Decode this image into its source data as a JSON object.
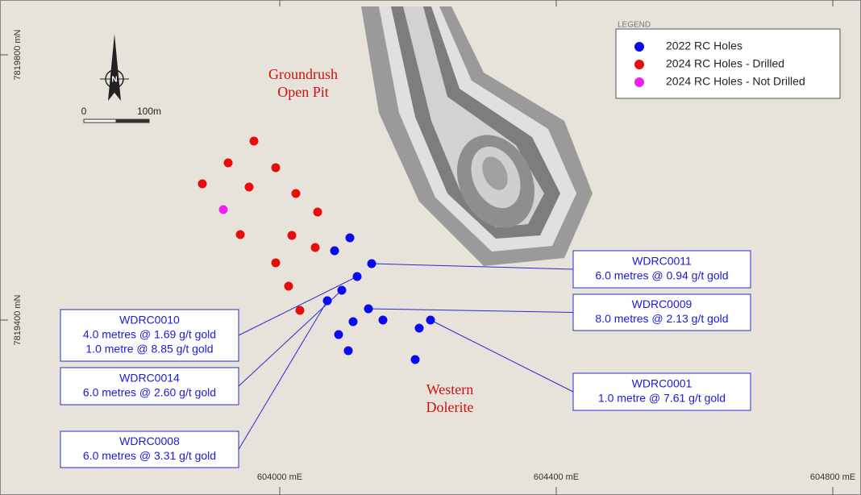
{
  "map": {
    "grid_labels": {
      "north": [
        "7819800 mN",
        "7819400 mN"
      ],
      "east": [
        "604000 mE",
        "604400 mE",
        "604800 mE"
      ]
    },
    "north_arrow": "N",
    "scale_bar": {
      "start": "0",
      "end": "100m"
    },
    "legend": {
      "title": "LEGEND",
      "items": [
        {
          "label": "2022 RC Holes",
          "color": "#0a0af0"
        },
        {
          "label": "2024 RC Holes - Drilled",
          "color": "#e80c0c"
        },
        {
          "label": "2024 RC Holes - Not Drilled",
          "color": "#f020f0"
        }
      ]
    },
    "place_labels": {
      "pit": [
        "Groundrush",
        "Open Pit"
      ],
      "dolerite": [
        "Western",
        "Dolerite"
      ]
    },
    "callouts": [
      {
        "hole": "WDRC0011",
        "lines": [
          "6.0 metres @ 0.94 g/t gold"
        ]
      },
      {
        "hole": "WDRC0009",
        "lines": [
          "8.0 metres @ 2.13 g/t gold"
        ]
      },
      {
        "hole": "WDRC0001",
        "lines": [
          "1.0 metre @ 7.61 g/t gold"
        ]
      },
      {
        "hole": "WDRC0010",
        "lines": [
          "4.0 metres @ 1.69 g/t gold",
          "1.0 metre @ 8.85 g/t gold"
        ]
      },
      {
        "hole": "WDRC0014",
        "lines": [
          "6.0 metres @ 2.60 g/t gold"
        ]
      },
      {
        "hole": "WDRC0008",
        "lines": [
          "6.0 metres @ 3.31 g/t gold"
        ]
      }
    ]
  }
}
